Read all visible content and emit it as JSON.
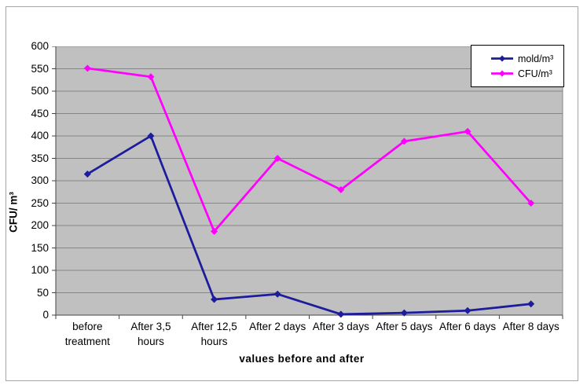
{
  "chart": {
    "y_axis_title": "CFU/ m³",
    "x_axis_title": "values before and after"
  },
  "chart_data": {
    "type": "line",
    "title": "",
    "xlabel": "values before and after",
    "ylabel": "CFU/ m³",
    "categories": [
      "before treatment",
      "After 3,5 hours",
      "After 12,5 hours",
      "After 2 days",
      "After 3 days",
      "After 5 days",
      "After 6 days",
      "After 8 days"
    ],
    "series": [
      {
        "name": "mold/m³",
        "color": "#1c1c9c",
        "marker": "diamond",
        "values": [
          315,
          400,
          35,
          47,
          2,
          5,
          10,
          25
        ]
      },
      {
        "name": "CFU/m³",
        "color": "#ff00ff",
        "marker": "diamond",
        "values": [
          551,
          532,
          187,
          350,
          280,
          388,
          410,
          250
        ]
      }
    ],
    "ylim": [
      0,
      600
    ],
    "y_ticks": [
      0,
      50,
      100,
      150,
      200,
      250,
      300,
      350,
      400,
      450,
      500,
      550,
      600
    ],
    "grid": true,
    "legend_position": "top-right",
    "plot_bg_color": "#c0c0c0",
    "gridline_color": "#868686",
    "axis_color": "#444444"
  }
}
